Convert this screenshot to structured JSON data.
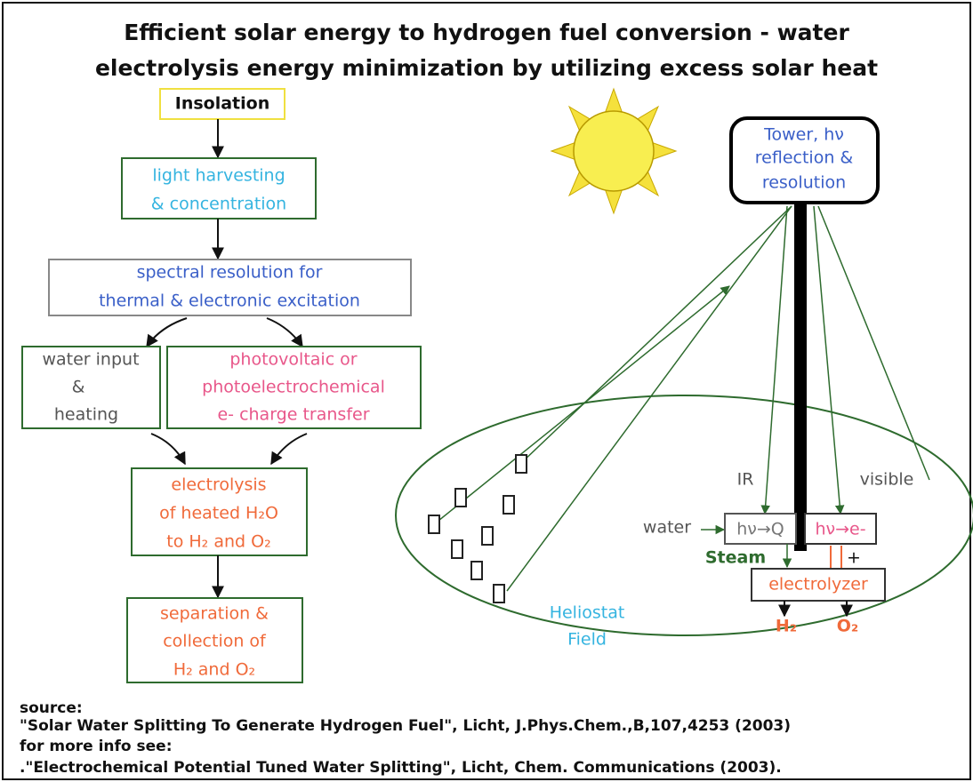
{
  "title": [
    "Efficient solar energy to hydrogen fuel conversion - water",
    "electrolysis energy minimization by utilizing excess solar heat"
  ],
  "nodes": [
    {
      "lines": [
        "Insolation"
      ]
    },
    {
      "lines": [
        "light harvesting",
        "& concentration"
      ]
    },
    {
      "lines": [
        "spectral resolution for",
        "thermal & electronic excitation"
      ]
    },
    {
      "lines": [
        "water input",
        "&",
        "heating"
      ]
    },
    {
      "lines": [
        "photovoltaic or",
        "photoelectrochemical",
        "e- charge transfer"
      ]
    },
    {
      "lines": [
        "electrolysis",
        "of heated H₂O",
        "to H₂ and O₂"
      ]
    },
    {
      "lines": [
        "separation &",
        "collection of",
        "H₂ and O₂"
      ]
    }
  ],
  "tower": {
    "lines": [
      "Tower, hν",
      "reflection &",
      "resolution"
    ]
  },
  "labels": {
    "ir": "IR",
    "visible": "visible",
    "water": "water",
    "heat": "hν→Q",
    "charge": "hν→e-",
    "steam": "Steam",
    "plus": "+",
    "electrolyzer": "electrolyzer",
    "h2": "H₂",
    "o2": "O₂",
    "field": [
      "Heliostat",
      "Field"
    ]
  },
  "source": [
    "source:",
    "\"Solar Water Splitting To Generate Hydrogen Fuel\", Licht, J.Phys.Chem.,B,107,4253 (2003)",
    "for more info see:",
    ".\"Electrochemical Potential Tuned Water Splitting\", Licht, Chem. Communications (2003)."
  ]
}
